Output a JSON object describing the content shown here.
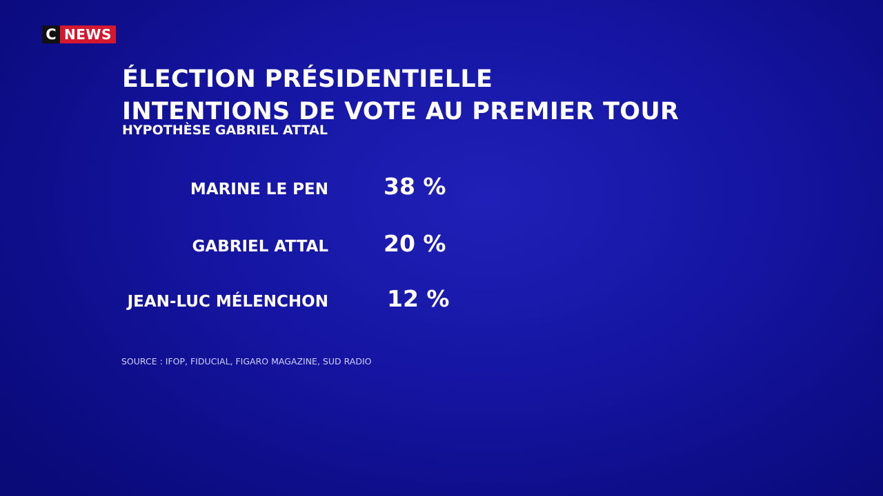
{
  "logo": {
    "letter": "C",
    "word": "NEWS",
    "colors": {
      "dark": "#111111",
      "red": "#d3182f"
    }
  },
  "title": {
    "line1": "ÉLECTION PRÉSIDENTIELLE",
    "line2": "INTENTIONS DE VOTE AU PREMIER TOUR"
  },
  "subtitle": "HYPOTHÈSE GABRIEL ATTAL",
  "results": [
    {
      "name": "MARINE LE PEN",
      "value": "38 %"
    },
    {
      "name": "GABRIEL ATTAL",
      "value": "20 %"
    },
    {
      "name": "JEAN-LUC MÉLENCHON",
      "value": "12 %"
    }
  ],
  "source": "SOURCE : IFOP, FIDUCIAL, FIGARO MAGAZINE, SUD RADIO",
  "background_color": "#1515a2"
}
